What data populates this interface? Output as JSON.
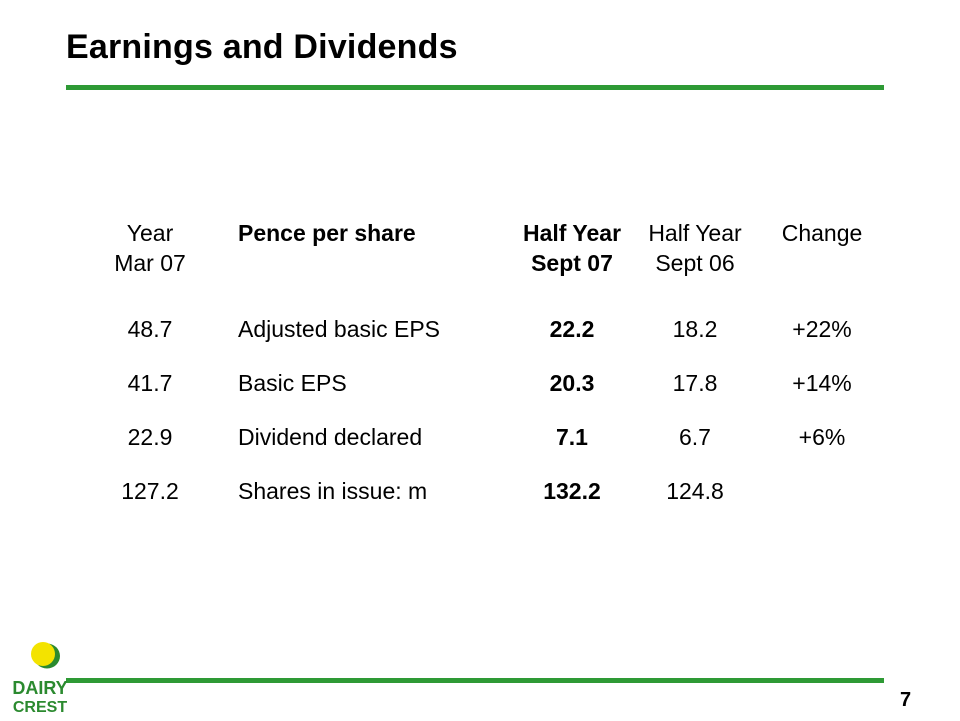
{
  "colors": {
    "accent_green": "#2e9a35",
    "logo_yellow": "#f3e300",
    "logo_green": "#2b8a2f"
  },
  "slide": {
    "title": "Earnings and Dividends",
    "page_number": "7"
  },
  "table": {
    "headers": {
      "year": [
        "Year",
        "Mar 07"
      ],
      "label": [
        "Pence per share"
      ],
      "current": [
        "Half Year",
        "Sept 07"
      ],
      "previous": [
        "Half Year",
        "Sept 06"
      ],
      "change": [
        "Change"
      ]
    },
    "rows": [
      {
        "year": "48.7",
        "label": "Adjusted basic EPS",
        "current": "22.2",
        "previous": "18.2",
        "change": "+22%"
      },
      {
        "year": "41.7",
        "label": "Basic EPS",
        "current": "20.3",
        "previous": "17.8",
        "change": "+14%"
      },
      {
        "year": "22.9",
        "label": "Dividend declared",
        "current": "7.1",
        "previous": "6.7",
        "change": "+6%"
      },
      {
        "year": "127.2",
        "label": "Shares in issue: m",
        "current": "132.2",
        "previous": "124.8",
        "change": ""
      }
    ]
  },
  "logo": {
    "line1": "DAIRY",
    "line2": "CREST"
  }
}
